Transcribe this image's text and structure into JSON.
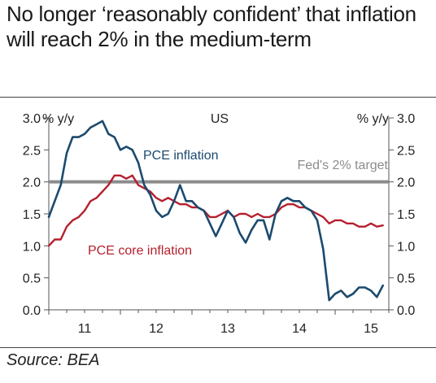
{
  "title": "No longer ‘reasonably confident’ that inflation will reach 2% in the medium-term",
  "source": "Source: BEA",
  "chart_data": {
    "type": "line",
    "region_label": "US",
    "ylabel_left": "% y/y",
    "ylabel_right": "% y/y",
    "ylim": [
      0,
      3
    ],
    "yticks": [
      "0.0",
      "0.5",
      "1.0",
      "1.5",
      "2.0",
      "2.5",
      "3.0"
    ],
    "x_tick_labels": [
      "11",
      "12",
      "13",
      "14",
      "15"
    ],
    "xlim": [
      2011.0,
      2015.75
    ],
    "series": [
      {
        "name": "PCE inflation",
        "color": "#1b4a6e",
        "x": [
          2011.0,
          2011.083,
          2011.167,
          2011.25,
          2011.333,
          2011.417,
          2011.5,
          2011.583,
          2011.667,
          2011.75,
          2011.833,
          2011.917,
          2012.0,
          2012.083,
          2012.167,
          2012.25,
          2012.333,
          2012.417,
          2012.5,
          2012.583,
          2012.667,
          2012.75,
          2012.833,
          2012.917,
          2013.0,
          2013.083,
          2013.167,
          2013.25,
          2013.333,
          2013.417,
          2013.5,
          2013.583,
          2013.667,
          2013.75,
          2013.833,
          2013.917,
          2014.0,
          2014.083,
          2014.167,
          2014.25,
          2014.333,
          2014.417,
          2014.5,
          2014.583,
          2014.667,
          2014.75,
          2014.833,
          2014.917,
          2015.0,
          2015.083,
          2015.167,
          2015.25,
          2015.333,
          2015.417,
          2015.5,
          2015.583,
          2015.667
        ],
        "values": [
          1.45,
          1.7,
          1.95,
          2.45,
          2.7,
          2.7,
          2.75,
          2.85,
          2.9,
          2.95,
          2.75,
          2.7,
          2.5,
          2.55,
          2.5,
          2.3,
          1.95,
          1.8,
          1.55,
          1.45,
          1.5,
          1.7,
          1.95,
          1.7,
          1.7,
          1.6,
          1.55,
          1.35,
          1.15,
          1.35,
          1.55,
          1.45,
          1.2,
          1.05,
          1.25,
          1.4,
          1.4,
          1.1,
          1.5,
          1.7,
          1.75,
          1.7,
          1.7,
          1.6,
          1.55,
          1.4,
          0.95,
          0.15,
          0.25,
          0.3,
          0.2,
          0.25,
          0.35,
          0.35,
          0.3,
          0.2,
          0.38
        ]
      },
      {
        "name": "PCE core inflation",
        "color": "#b5202e",
        "x": [
          2011.0,
          2011.083,
          2011.167,
          2011.25,
          2011.333,
          2011.417,
          2011.5,
          2011.583,
          2011.667,
          2011.75,
          2011.833,
          2011.917,
          2012.0,
          2012.083,
          2012.167,
          2012.25,
          2012.333,
          2012.417,
          2012.5,
          2012.583,
          2012.667,
          2012.75,
          2012.833,
          2012.917,
          2013.0,
          2013.083,
          2013.167,
          2013.25,
          2013.333,
          2013.417,
          2013.5,
          2013.583,
          2013.667,
          2013.75,
          2013.833,
          2013.917,
          2014.0,
          2014.083,
          2014.167,
          2014.25,
          2014.333,
          2014.417,
          2014.5,
          2014.583,
          2014.667,
          2014.75,
          2014.833,
          2014.917,
          2015.0,
          2015.083,
          2015.167,
          2015.25,
          2015.333,
          2015.417,
          2015.5,
          2015.583,
          2015.667
        ],
        "values": [
          1.0,
          1.1,
          1.1,
          1.3,
          1.4,
          1.45,
          1.55,
          1.7,
          1.75,
          1.85,
          1.95,
          2.1,
          2.1,
          2.05,
          2.1,
          1.95,
          1.9,
          1.85,
          1.75,
          1.7,
          1.75,
          1.7,
          1.65,
          1.65,
          1.6,
          1.6,
          1.55,
          1.45,
          1.45,
          1.5,
          1.55,
          1.45,
          1.5,
          1.5,
          1.45,
          1.5,
          1.45,
          1.45,
          1.5,
          1.6,
          1.65,
          1.65,
          1.6,
          1.6,
          1.55,
          1.5,
          1.45,
          1.35,
          1.4,
          1.4,
          1.35,
          1.35,
          1.3,
          1.3,
          1.35,
          1.3,
          1.32
        ]
      }
    ],
    "reference_line": {
      "name": "Fed's 2% target",
      "value": 2.0,
      "color": "#8c8c8c"
    },
    "grid": false,
    "legend": "inline labels"
  }
}
